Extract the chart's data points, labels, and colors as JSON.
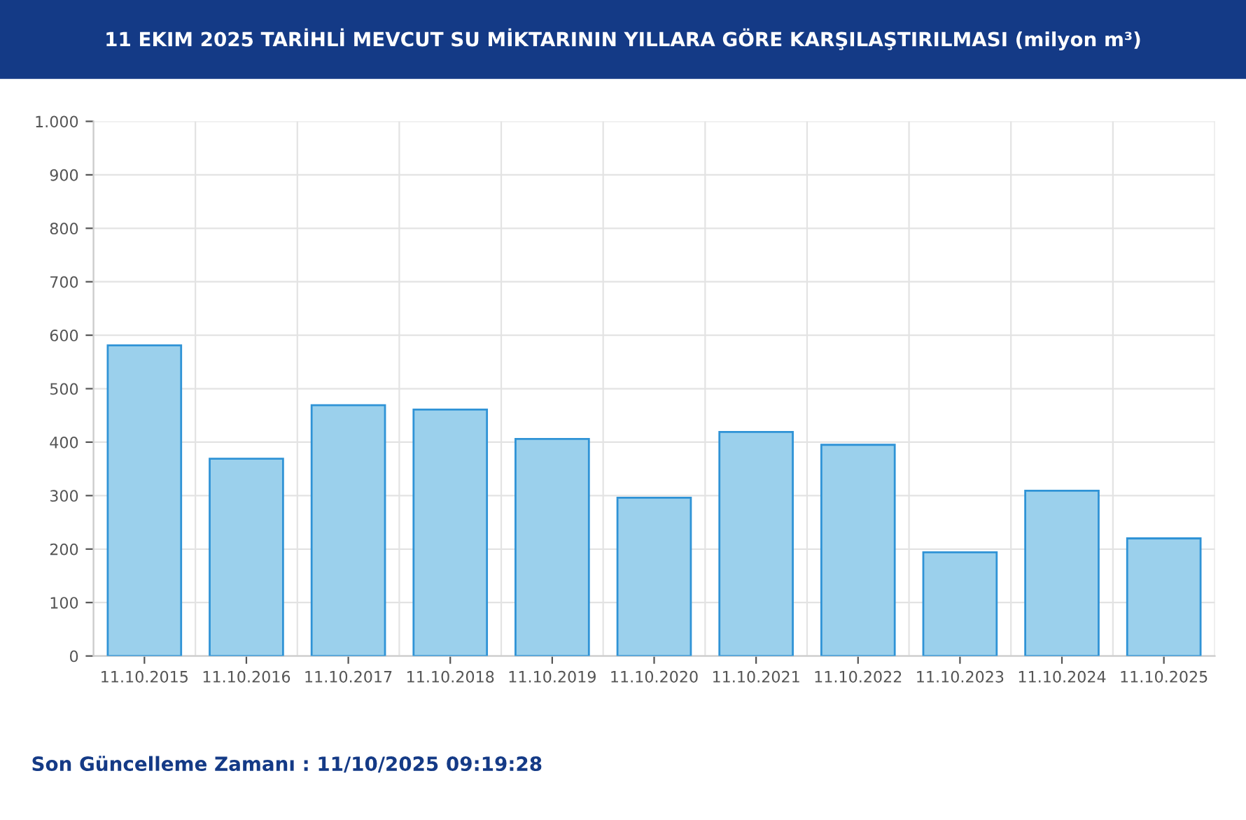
{
  "chart_data": {
    "type": "bar",
    "title": "11 EKIM 2025 TARİHLİ MEVCUT SU MİKTARININ YILLARA GÖRE KARŞILAŞTIRILMASI (milyon m³)",
    "categories": [
      "11.10.2015",
      "11.10.2016",
      "11.10.2017",
      "11.10.2018",
      "11.10.2019",
      "11.10.2020",
      "11.10.2021",
      "11.10.2022",
      "11.10.2023",
      "11.10.2024",
      "11.10.2025"
    ],
    "series": [
      {
        "color": "#9bd0ec",
        "values": [
          581,
          369,
          469,
          461,
          406,
          296,
          419,
          395,
          194,
          309,
          220
        ]
      }
    ],
    "ylim": [
      0,
      1000
    ],
    "yticks": [
      0,
      100,
      200,
      300,
      400,
      500,
      600,
      700,
      800,
      900,
      {
        "value": 1000,
        "label": "1.000"
      }
    ],
    "grid": true,
    "annotations": [
      "Son Güncelleme Zamanı : 11/10/2025 09:19:28"
    ]
  }
}
